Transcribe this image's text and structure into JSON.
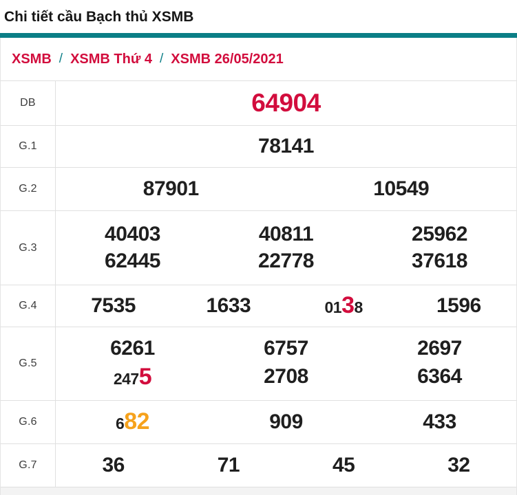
{
  "page": {
    "title": "Chi tiết cầu Bạch thủ XSMB"
  },
  "breadcrumb": {
    "separator": "/",
    "items": [
      "XSMB",
      "XSMB Thứ 4",
      "XSMB 26/05/2021"
    ]
  },
  "colors": {
    "accent_teal": "#0b7e86",
    "highlight_red": "#d20d3d",
    "highlight_orange": "#f6a21c",
    "digit_dark": "#1f1f1f"
  },
  "results": {
    "rows": [
      {
        "label": "DB",
        "cells": [
          {
            "pre": "",
            "hl": "64904",
            "post": "",
            "hl_color": "red"
          }
        ]
      },
      {
        "label": "G.1",
        "cells": [
          {
            "pre": "78141",
            "hl": "",
            "post": ""
          }
        ]
      },
      {
        "label": "G.2",
        "cells": [
          {
            "pre": "87901",
            "hl": "",
            "post": ""
          },
          {
            "pre": "10549",
            "hl": "",
            "post": ""
          }
        ]
      },
      {
        "label": "G.3",
        "cells": [
          {
            "pre": "40403",
            "hl": "",
            "post": ""
          },
          {
            "pre": "40811",
            "hl": "",
            "post": ""
          },
          {
            "pre": "25962",
            "hl": "",
            "post": ""
          },
          {
            "pre": "62445",
            "hl": "",
            "post": ""
          },
          {
            "pre": "22778",
            "hl": "",
            "post": ""
          },
          {
            "pre": "37618",
            "hl": "",
            "post": ""
          }
        ]
      },
      {
        "label": "G.4",
        "cells": [
          {
            "pre": "7535",
            "hl": "",
            "post": ""
          },
          {
            "pre": "1633",
            "hl": "",
            "post": ""
          },
          {
            "pre": "01",
            "hl": "3",
            "post": "8",
            "hl_color": "red"
          },
          {
            "pre": "1596",
            "hl": "",
            "post": ""
          }
        ]
      },
      {
        "label": "G.5",
        "cells": [
          {
            "pre": "6261",
            "hl": "",
            "post": ""
          },
          {
            "pre": "6757",
            "hl": "",
            "post": ""
          },
          {
            "pre": "2697",
            "hl": "",
            "post": ""
          },
          {
            "pre": "247",
            "hl": "5",
            "post": "",
            "hl_color": "red"
          },
          {
            "pre": "2708",
            "hl": "",
            "post": ""
          },
          {
            "pre": "6364",
            "hl": "",
            "post": ""
          }
        ]
      },
      {
        "label": "G.6",
        "cells": [
          {
            "pre": "6",
            "hl": "82",
            "post": "",
            "hl_color": "orange"
          },
          {
            "pre": "909",
            "hl": "",
            "post": ""
          },
          {
            "pre": "433",
            "hl": "",
            "post": ""
          }
        ]
      },
      {
        "label": "G.7",
        "cells": [
          {
            "pre": "36",
            "hl": "",
            "post": ""
          },
          {
            "pre": "71",
            "hl": "",
            "post": ""
          },
          {
            "pre": "45",
            "hl": "",
            "post": ""
          },
          {
            "pre": "32",
            "hl": "",
            "post": ""
          }
        ]
      }
    ]
  }
}
